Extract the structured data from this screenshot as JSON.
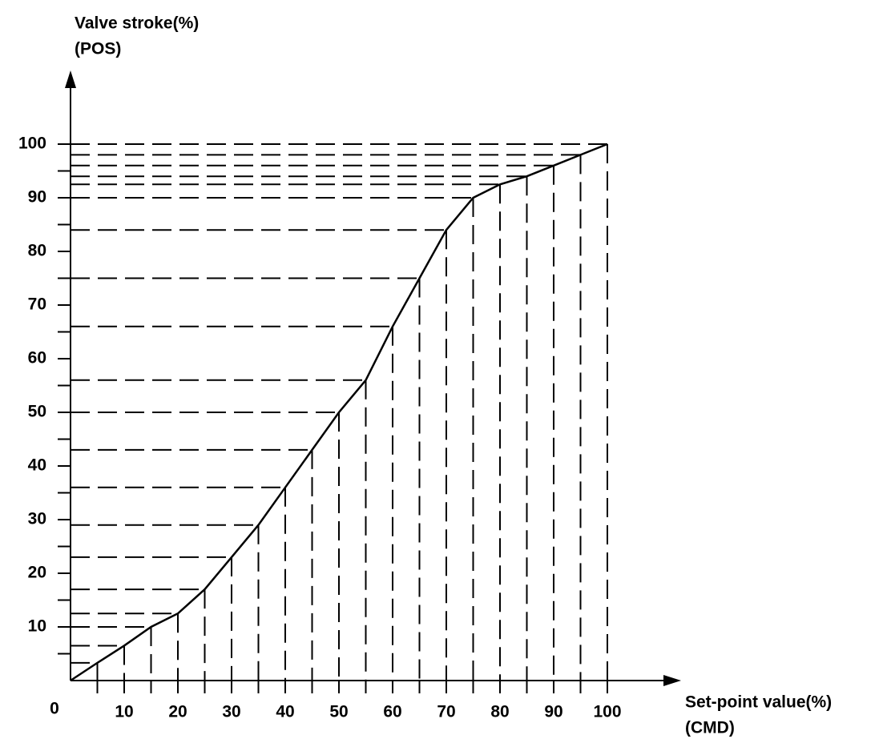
{
  "chart_data": {
    "type": "line",
    "ylabel": "Valve stroke(%)",
    "ylabel_sub": "(POS)",
    "xlabel": "Set-point value(%)",
    "xlabel_sub": "(CMD)",
    "x": [
      0,
      5,
      10,
      15,
      20,
      25,
      30,
      35,
      40,
      45,
      50,
      55,
      60,
      65,
      70,
      75,
      80,
      85,
      90,
      95,
      100
    ],
    "series": [
      {
        "color": "#000000",
        "values": [
          0,
          3.3,
          6.5,
          10,
          12.5,
          17,
          23,
          29,
          36,
          43,
          50,
          56,
          66,
          75,
          84,
          90,
          92.5,
          94,
          96,
          98,
          100
        ]
      }
    ],
    "xlim": [
      0,
      100
    ],
    "ylim": [
      0,
      100
    ],
    "xticks": [
      0,
      10,
      20,
      30,
      40,
      50,
      60,
      70,
      80,
      90,
      100
    ],
    "yticks": [
      10,
      20,
      30,
      40,
      50,
      60,
      70,
      80,
      90,
      100
    ],
    "xminorticks": [
      5,
      15,
      25,
      35,
      45,
      55,
      65,
      75,
      85,
      95
    ],
    "yminorticks": [
      5,
      15,
      25,
      35,
      45,
      55,
      65,
      75,
      85,
      95
    ],
    "projection_lines": true
  }
}
